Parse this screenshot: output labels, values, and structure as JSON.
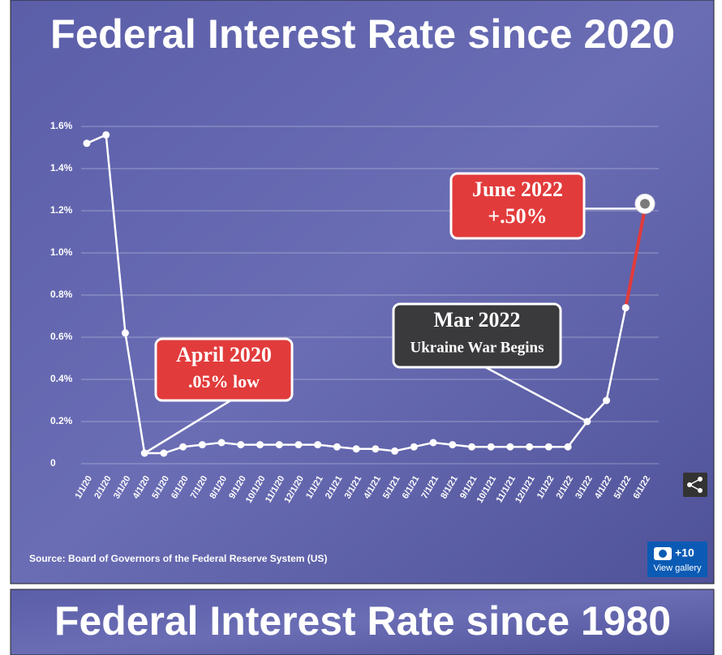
{
  "chart_data": {
    "type": "line",
    "title": "Federal Interest Rate since 2020",
    "categories": [
      "1/1/20",
      "2/1/20",
      "3/1/20",
      "4/1/20",
      "5/1/20",
      "6/1/20",
      "7/1/20",
      "8/1/20",
      "9/1/20",
      "10/1/20",
      "11/1/20",
      "12/1/20",
      "1/1/21",
      "2/1/21",
      "3/1/21",
      "4/1/21",
      "5/1/21",
      "6/1/21",
      "7/1/21",
      "8/1/21",
      "9/1/21",
      "10/1/21",
      "11/1/21",
      "12/1/21",
      "1/1/22",
      "2/1/22",
      "3/1/22",
      "4/1/22",
      "5/1/22",
      "6/1/22"
    ],
    "values": [
      1.52,
      1.56,
      0.62,
      0.05,
      0.05,
      0.08,
      0.09,
      0.1,
      0.09,
      0.09,
      0.09,
      0.09,
      0.09,
      0.08,
      0.07,
      0.07,
      0.06,
      0.08,
      0.1,
      0.09,
      0.08,
      0.08,
      0.08,
      0.08,
      0.08,
      0.08,
      0.2,
      0.3,
      0.74,
      1.21
    ],
    "color": "#ffffff",
    "highlight_color": "#e23b3b",
    "ylim": [
      0,
      1.6
    ],
    "yticks": [
      0,
      {
        "value": 0.2,
        "label": "0.2%"
      },
      {
        "value": 0.4,
        "label": "0.4%"
      },
      {
        "value": 0.6,
        "label": "0.6%"
      },
      {
        "value": 0.8,
        "label": "0.8%"
      },
      {
        "value": 1.0,
        "label": "1.0%"
      },
      {
        "value": 1.2,
        "label": "1.2%"
      },
      {
        "value": 1.4,
        "label": "1.4%"
      },
      {
        "value": 1.6,
        "label": "1.6%"
      }
    ],
    "grid": true,
    "annotations": [
      {
        "lines": [
          "April 2020",
          ".05% low"
        ]
      },
      {
        "lines": [
          "Mar 2022",
          "Ukraine War Begins"
        ]
      },
      {
        "lines": [
          "June 2022",
          "+.50%"
        ]
      }
    ],
    "source": "Source: Board of Governors of the Federal Reserve System (US)"
  },
  "gallery": {
    "count": "+10",
    "label": "View gallery"
  },
  "next_title": "Federal Interest Rate since 1980"
}
